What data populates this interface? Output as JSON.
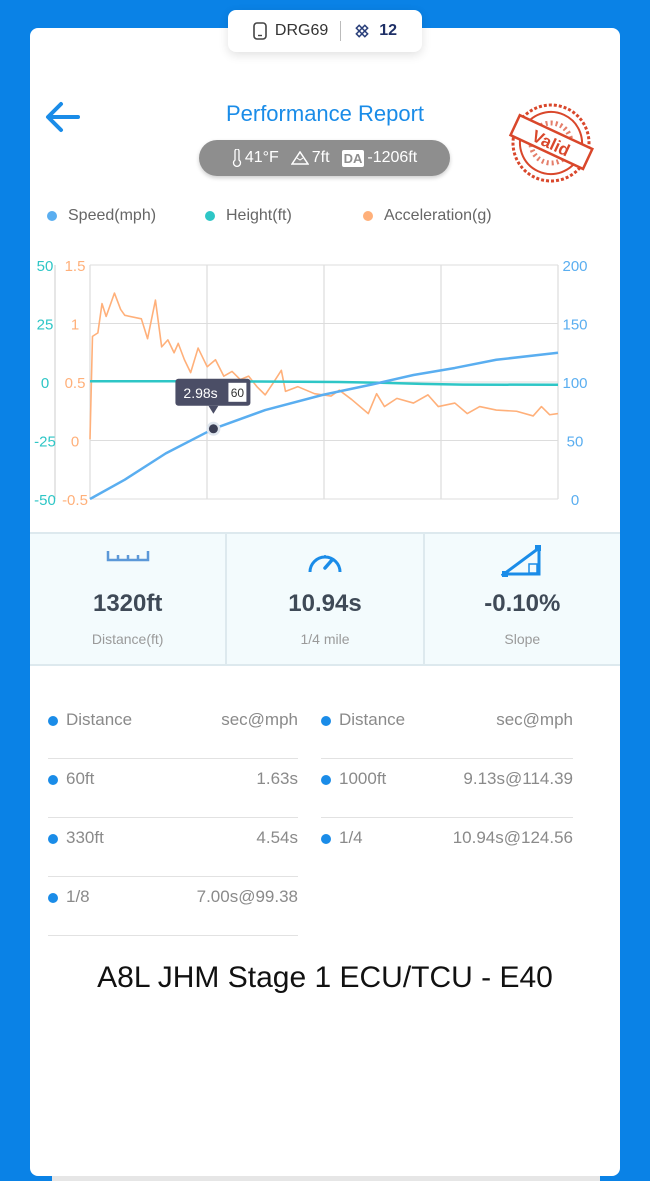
{
  "device": {
    "name": "DRG69",
    "satellites": "12",
    "icons": [
      "phone-icon",
      "satellite-icon"
    ]
  },
  "header": {
    "title": "Performance Report",
    "back_icon": "arrow-left-icon",
    "stamp_text": "Valid"
  },
  "weather": {
    "temperature": "41°F",
    "altitude": "7ft",
    "da_label": "DA",
    "density_altitude": "-1206ft"
  },
  "colors": {
    "background": "#0a82e6",
    "accent": "#1a8ce8",
    "speed": "#5aaef0",
    "height": "#2ec6c6",
    "acceleration": "#ffb07a",
    "stamp": "#d9472b"
  },
  "chart_data": {
    "type": "line",
    "legend_position": "top",
    "grid": true,
    "series": [
      {
        "name": "Speed(mph)",
        "axis": "right",
        "ylim": [
          0,
          200
        ],
        "ticks": [
          "0",
          "50",
          "100",
          "150",
          "200"
        ],
        "points": [
          [
            0,
            0
          ],
          [
            0.84,
            16.5
          ],
          [
            1.83,
            39
          ],
          [
            2.98,
            60
          ],
          [
            4.23,
            76
          ],
          [
            5.62,
            89
          ],
          [
            6.82,
            98
          ],
          [
            7.81,
            106
          ],
          [
            8.81,
            112
          ],
          [
            9.81,
            119
          ],
          [
            11.3,
            125
          ]
        ]
      },
      {
        "name": "Height(ft)",
        "axis": "left-outer",
        "ylim": [
          -50,
          50
        ],
        "ticks": [
          "-50",
          "-25",
          "0",
          "25",
          "50"
        ],
        "points": [
          [
            0,
            0.3
          ],
          [
            2,
            0.3
          ],
          [
            4,
            0.2
          ],
          [
            6,
            0
          ],
          [
            7,
            -0.3
          ],
          [
            8,
            -0.8
          ],
          [
            9,
            -1.1
          ],
          [
            11.3,
            -1.2
          ]
        ]
      },
      {
        "name": "Acceleration(g)",
        "axis": "left-inner",
        "ylim": [
          -0.5,
          1.5
        ],
        "ticks": [
          "-0.5",
          "0",
          "0.5",
          "1",
          "1.5"
        ],
        "points": [
          [
            0,
            0.01
          ],
          [
            0.06,
            0.89
          ],
          [
            0.19,
            0.92
          ],
          [
            0.29,
            1.17
          ],
          [
            0.39,
            1.06
          ],
          [
            0.59,
            1.26
          ],
          [
            0.74,
            1.12
          ],
          [
            0.84,
            1.07
          ],
          [
            1.24,
            1.04
          ],
          [
            1.39,
            0.87
          ],
          [
            1.58,
            1.2
          ],
          [
            1.73,
            0.8
          ],
          [
            1.88,
            0.86
          ],
          [
            2.03,
            0.75
          ],
          [
            2.13,
            0.83
          ],
          [
            2.28,
            0.69
          ],
          [
            2.43,
            0.58
          ],
          [
            2.61,
            0.79
          ],
          [
            2.83,
            0.63
          ],
          [
            3.03,
            0.69
          ],
          [
            3.23,
            0.55
          ],
          [
            3.43,
            0.59
          ],
          [
            3.63,
            0.52
          ],
          [
            3.83,
            0.55
          ],
          [
            4.03,
            0.46
          ],
          [
            4.23,
            0.39
          ],
          [
            4.42,
            0.49
          ],
          [
            4.62,
            0.6
          ],
          [
            4.72,
            0.42
          ],
          [
            5.02,
            0.46
          ],
          [
            5.42,
            0.4
          ],
          [
            5.82,
            0.38
          ],
          [
            6.02,
            0.43
          ],
          [
            6.32,
            0.35
          ],
          [
            6.72,
            0.23
          ],
          [
            6.92,
            0.4
          ],
          [
            7.11,
            0.29
          ],
          [
            7.41,
            0.36
          ],
          [
            7.81,
            0.32
          ],
          [
            8.16,
            0.39
          ],
          [
            8.41,
            0.29
          ],
          [
            8.81,
            0.32
          ],
          [
            9.11,
            0.23
          ],
          [
            9.41,
            0.29
          ],
          [
            9.81,
            0.26
          ],
          [
            10.3,
            0.25
          ],
          [
            10.7,
            0.21
          ],
          [
            10.9,
            0.29
          ],
          [
            11.1,
            0.22
          ],
          [
            11.3,
            0.23
          ]
        ]
      }
    ],
    "tooltip": {
      "time": "2.98s",
      "value": "60",
      "x": 2.98,
      "y": 60
    }
  },
  "stats": [
    {
      "icon": "ruler-icon",
      "value": "1320ft",
      "label": "Distance(ft)"
    },
    {
      "icon": "speedometer-icon",
      "value": "10.94s",
      "label": "1/4 mile"
    },
    {
      "icon": "slope-icon",
      "value": "-0.10%",
      "label": "Slope"
    }
  ],
  "results": {
    "left": [
      {
        "k": "Distance",
        "v": "sec@mph"
      },
      {
        "k": "60ft",
        "v": "1.63s"
      },
      {
        "k": "330ft",
        "v": "4.54s"
      },
      {
        "k": "1/8",
        "v": "7.00s@99.38"
      }
    ],
    "right": [
      {
        "k": "Distance",
        "v": "sec@mph"
      },
      {
        "k": "1000ft",
        "v": "9.13s@114.39"
      },
      {
        "k": "1/4",
        "v": "10.94s@124.56"
      }
    ]
  },
  "caption": "A8L JHM Stage 1 ECU/TCU - E40"
}
